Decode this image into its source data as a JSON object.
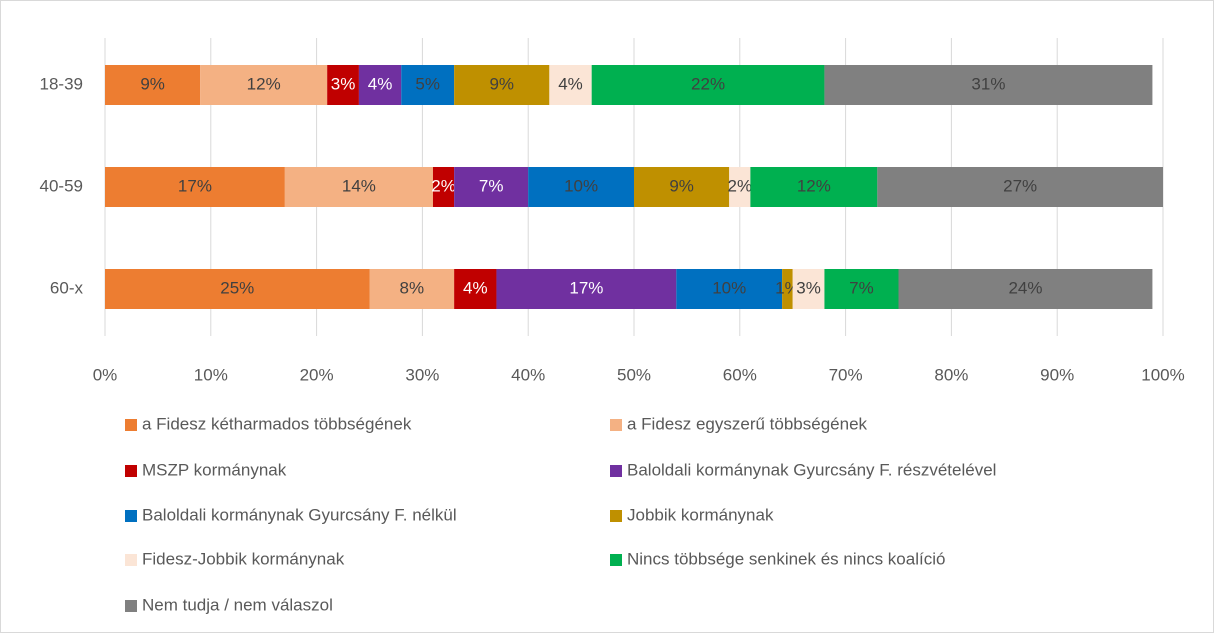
{
  "chart_data": {
    "type": "stacked_barh",
    "categories": [
      "18-39",
      "40-59",
      "60-x"
    ],
    "series": [
      {
        "name": "a Fidesz kétharmados többségének",
        "color": "#ed7d31",
        "values": [
          9,
          17,
          25
        ],
        "value_labels": [
          "9%",
          "17%",
          "25%"
        ]
      },
      {
        "name": "a Fidesz egyszerű többségének",
        "color": "#f4b183",
        "values": [
          12,
          14,
          8
        ],
        "value_labels": [
          "12%",
          "14%",
          "8%"
        ]
      },
      {
        "name": "MSZP kormánynak",
        "color": "#c00000",
        "values": [
          3,
          2,
          4
        ],
        "value_labels": [
          "3%",
          "2%",
          "4%"
        ]
      },
      {
        "name": "Baloldali kormánynak Gyurcsány F. részvételével",
        "color": "#7030a0",
        "values": [
          4,
          7,
          17
        ],
        "value_labels": [
          "4%",
          "7%",
          "17%"
        ]
      },
      {
        "name": "Baloldali kormánynak Gyurcsány F. nélkül",
        "color": "#0070c0",
        "values": [
          5,
          10,
          10
        ],
        "value_labels": [
          "5%",
          "10%",
          "10%"
        ]
      },
      {
        "name": "Jobbik kormánynak",
        "color": "#bf9000",
        "values": [
          9,
          9,
          1
        ],
        "value_labels": [
          "9%",
          "9%",
          "1%"
        ]
      },
      {
        "name": "Fidesz-Jobbik kormánynak",
        "color": "#fbe5d6",
        "values": [
          4,
          2,
          3
        ],
        "value_labels": [
          "4%",
          "2%",
          "3%"
        ]
      },
      {
        "name": "Nincs többsége senkinek és nincs koalíció",
        "color": "#00b050",
        "values": [
          22,
          12,
          7
        ],
        "value_labels": [
          "22%",
          "12%",
          "7%"
        ]
      },
      {
        "name": "Nem tudja / nem válaszol",
        "color": "#808080",
        "values": [
          31,
          27,
          24
        ],
        "value_labels": [
          "31%",
          "27%",
          "24%"
        ]
      }
    ],
    "xlim": [
      0,
      100
    ],
    "xticks": [
      {
        "value": 0,
        "label": "0%"
      },
      {
        "value": 10,
        "label": "10%"
      },
      {
        "value": 20,
        "label": "20%"
      },
      {
        "value": 30,
        "label": "30%"
      },
      {
        "value": 40,
        "label": "40%"
      },
      {
        "value": 50,
        "label": "50%"
      },
      {
        "value": 60,
        "label": "60%"
      },
      {
        "value": 70,
        "label": "70%"
      },
      {
        "value": 80,
        "label": "80%"
      },
      {
        "value": 90,
        "label": "90%"
      },
      {
        "value": 100,
        "label": "100%"
      }
    ],
    "grid": true
  }
}
